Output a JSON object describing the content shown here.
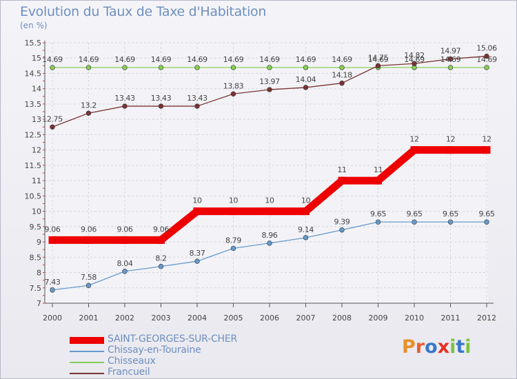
{
  "title": "Evolution du Taux de Taxe d'Habitation",
  "unit": "(en %)",
  "brand": {
    "text": "Proxiti",
    "letter_colors": [
      "#e8902a",
      "#e86030",
      "#3a78c8",
      "#e83020",
      "#7cc43c",
      "#3a78c8",
      "#7cc43c"
    ]
  },
  "chart_data": {
    "type": "line",
    "x": [
      2000,
      2001,
      2002,
      2003,
      2004,
      2005,
      2006,
      2007,
      2008,
      2009,
      2010,
      2011,
      2012
    ],
    "ylim": [
      7,
      15.5
    ],
    "ytick_labels": [
      "7",
      "7.5",
      "8",
      "8.5",
      "9",
      "9.5",
      "10",
      "10.5",
      "11",
      "11.5",
      "12",
      "12.5",
      "13",
      "13.5",
      "14",
      "14.5",
      "15",
      "15.5"
    ],
    "grid": true,
    "legend_position": "bottom-left",
    "series": [
      {
        "name": "SAINT-GEORGES-SUR-CHER",
        "color": "#ee0000",
        "values": [
          9.06,
          9.06,
          9.06,
          9.06,
          10,
          10,
          10,
          10,
          11,
          11,
          12,
          12,
          12
        ],
        "labels": [
          "9.06",
          "9.06",
          "9.06",
          "9.06",
          "10",
          "10",
          "10",
          "10",
          "11",
          "11",
          "12",
          "12",
          "12"
        ]
      },
      {
        "name": "Chissay-en-Touraine",
        "color": "#6699cc",
        "values": [
          7.43,
          7.58,
          8.04,
          8.2,
          8.37,
          8.79,
          8.96,
          9.14,
          9.39,
          9.65,
          9.65,
          9.65,
          9.65
        ],
        "labels": [
          "7.43",
          "7.58",
          "8.04",
          "8.2",
          "8.37",
          "8.79",
          "8.96",
          "9.14",
          "9.39",
          "9.65",
          "9.65",
          "9.65",
          "9.65"
        ]
      },
      {
        "name": "Chisseaux",
        "color": "#88cc55",
        "values": [
          14.69,
          14.69,
          14.69,
          14.69,
          14.69,
          14.69,
          14.69,
          14.69,
          14.69,
          14.69,
          14.69,
          14.69,
          14.69
        ],
        "labels": [
          "14.69",
          "14.69",
          "14.69",
          "14.69",
          "14.69",
          "14.69",
          "14.69",
          "14.69",
          "14.69",
          "14.69",
          "14.69",
          "14.69",
          "14.69"
        ]
      },
      {
        "name": "Francueil",
        "color": "#7a3333",
        "values": [
          12.75,
          13.2,
          13.43,
          13.43,
          13.43,
          13.83,
          13.97,
          14.04,
          14.18,
          14.75,
          14.82,
          14.97,
          15.06
        ],
        "labels": [
          "12.75",
          "13.2",
          "13.43",
          "13.43",
          "13.43",
          "13.83",
          "13.97",
          "14.04",
          "14.18",
          "14.75",
          "14.82",
          "14.97",
          "15.06"
        ]
      }
    ]
  }
}
